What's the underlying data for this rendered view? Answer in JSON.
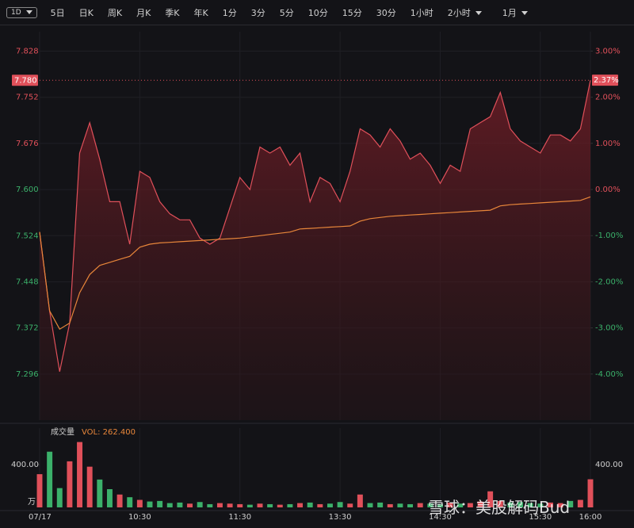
{
  "toolbar": {
    "buttons": [
      "1D",
      "5日",
      "日K",
      "周K",
      "月K",
      "季K",
      "年K",
      "1分",
      "3分",
      "5分",
      "10分",
      "15分",
      "30分",
      "1小时",
      "2小时",
      "1月"
    ]
  },
  "watermark": "雪球：美股解码Bud",
  "chart_data": {
    "type": "line",
    "x": [
      0,
      1,
      2,
      3,
      4,
      5,
      6,
      7,
      8,
      9,
      10,
      11,
      12,
      13,
      14,
      15,
      16,
      17,
      18,
      19,
      20,
      21,
      22,
      23,
      24,
      25,
      26,
      27,
      28,
      29,
      30,
      31,
      32,
      33,
      34,
      35,
      36,
      37,
      38,
      39,
      40,
      41,
      42,
      43,
      44,
      45,
      46,
      47,
      48,
      49,
      50,
      51,
      52,
      53,
      54,
      55
    ],
    "xlim": [
      0,
      55
    ],
    "xticks": [
      {
        "value": 0,
        "label": "07/17"
      },
      {
        "value": 10,
        "label": "10:30"
      },
      {
        "value": 20,
        "label": "11:30"
      },
      {
        "value": 30,
        "label": "13:30"
      },
      {
        "value": 40,
        "label": "14:30"
      },
      {
        "value": 50,
        "label": "15:30"
      },
      {
        "value": 55,
        "label": "16:00"
      }
    ],
    "series": [
      {
        "color": "#e0505a",
        "values": [
          7.53,
          7.4,
          7.3,
          7.38,
          7.66,
          7.71,
          7.65,
          7.58,
          7.58,
          7.51,
          7.63,
          7.62,
          7.58,
          7.56,
          7.55,
          7.55,
          7.52,
          7.51,
          7.52,
          7.57,
          7.62,
          7.6,
          7.67,
          7.66,
          7.67,
          7.64,
          7.66,
          7.58,
          7.62,
          7.61,
          7.58,
          7.63,
          7.7,
          7.69,
          7.67,
          7.7,
          7.68,
          7.65,
          7.66,
          7.64,
          7.61,
          7.64,
          7.63,
          7.7,
          7.71,
          7.72,
          7.76,
          7.7,
          7.68,
          7.67,
          7.66,
          7.69,
          7.69,
          7.68,
          7.7,
          7.78
        ]
      },
      {
        "color": "#e8863a",
        "values": [
          7.53,
          7.4,
          7.37,
          7.38,
          7.43,
          7.46,
          7.475,
          7.48,
          7.485,
          7.49,
          7.505,
          7.51,
          7.512,
          7.513,
          7.514,
          7.515,
          7.516,
          7.517,
          7.518,
          7.519,
          7.52,
          7.522,
          7.524,
          7.526,
          7.528,
          7.53,
          7.535,
          7.536,
          7.537,
          7.538,
          7.539,
          7.54,
          7.548,
          7.552,
          7.554,
          7.556,
          7.557,
          7.558,
          7.559,
          7.56,
          7.561,
          7.562,
          7.563,
          7.564,
          7.565,
          7.566,
          7.573,
          7.575,
          7.576,
          7.577,
          7.578,
          7.579,
          7.58,
          7.581,
          7.582,
          7.588
        ]
      }
    ],
    "ylim": [
      7.22,
      7.86
    ],
    "yticks": [
      7.296,
      7.372,
      7.448,
      7.524,
      {
        "value": 7.6,
        "label": "7.600"
      },
      7.676,
      7.752,
      7.828
    ],
    "y2lim": [
      -5.0,
      3.42
    ],
    "y2ticks": [
      {
        "value": 3,
        "label": "3.00%"
      },
      {
        "value": 2,
        "label": "2.00%"
      },
      {
        "value": 1,
        "label": "1.00%"
      },
      {
        "value": 0,
        "label": "0.00%"
      },
      {
        "value": -1,
        "label": "-1.00%"
      },
      {
        "value": -2,
        "label": "-2.00%"
      },
      {
        "value": -3,
        "label": "-3.00%"
      },
      {
        "value": -4,
        "label": "-4.00%"
      }
    ],
    "last": {
      "value": 7.78,
      "label": "7.780"
    },
    "last_pct": {
      "value": 2.37,
      "label": "2.37%"
    },
    "up_color": "#e0505a",
    "down_color": "#3bb06a",
    "grid": true,
    "volume": {
      "title": "成交量",
      "readout": "VOL: 262.400",
      "unit": "万",
      "ylim": [
        0,
        740
      ],
      "yticks": [
        {
          "value": 400,
          "label": "400.00"
        }
      ],
      "values": [
        310,
        520,
        180,
        430,
        610,
        380,
        260,
        170,
        120,
        95,
        70,
        55,
        60,
        40,
        45,
        35,
        50,
        30,
        40,
        35,
        30,
        25,
        35,
        30,
        25,
        30,
        40,
        45,
        30,
        35,
        50,
        35,
        120,
        40,
        45,
        30,
        35,
        30,
        40,
        35,
        30,
        45,
        35,
        40,
        55,
        150,
        60,
        45,
        50,
        40,
        35,
        45,
        40,
        60,
        70,
        262.4
      ]
    }
  }
}
